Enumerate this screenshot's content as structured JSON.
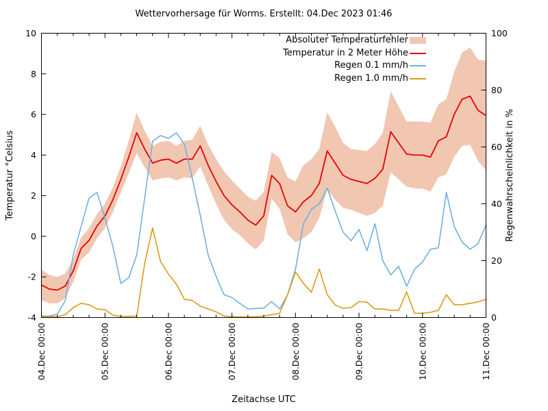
{
  "title": "Wettervorhersage für Worms. Erstellt: 04.Dec 2023 01:46",
  "chart_data": {
    "type": "line",
    "title": "Wettervorhersage für Worms. Erstellt: 04.Dec 2023 01:46",
    "x_label": "Zeitachse UTC",
    "x_start": "04.Dec 00:00",
    "x_end": "11.Dec 00:00",
    "sampling_hours": 3,
    "grid": false,
    "legend_position": "top-right-inside",
    "x_tick_labels": [
      "04.Dec 00:00",
      "05.Dec 00:00",
      "06.Dec 00:00",
      "07.Dec 00:00",
      "08.Dec 00:00",
      "09.Dec 00:00",
      "10.Dec 00:00",
      "11.Dec 00:00"
    ],
    "x_minor_ticks_hours": 6,
    "y_left": {
      "label": "Temperatur °Celsius",
      "range": [
        -4,
        10
      ],
      "ticks": [
        -4,
        -2,
        0,
        2,
        4,
        6,
        8,
        10
      ]
    },
    "y_right": {
      "label": "Regenwahrscheinlichkeit in %",
      "range": [
        0,
        100
      ],
      "ticks": [
        0,
        20,
        40,
        60,
        80,
        100
      ]
    },
    "series": [
      {
        "name": "Absoluter Temperaturfehler",
        "style": "band",
        "axis": "left",
        "color": "#f1c7b2",
        "half_width_values": [
          0.75,
          0.7,
          0.65,
          0.6,
          0.55,
          0.55,
          0.6,
          0.6,
          0.6,
          0.6,
          0.65,
          0.8,
          1.0,
          0.9,
          0.85,
          0.9,
          0.9,
          0.85,
          0.9,
          0.95,
          1.0,
          1.0,
          1.1,
          1.2,
          1.2,
          1.15,
          1.15,
          1.2,
          1.2,
          1.15,
          1.25,
          1.4,
          1.5,
          1.8,
          1.8,
          1.7,
          1.9,
          1.8,
          1.6,
          1.5,
          1.55,
          1.6,
          1.7,
          1.8,
          2.0,
          1.8,
          1.6,
          1.65,
          1.65,
          1.7,
          1.8,
          1.85,
          2.1,
          2.3,
          2.4,
          2.5,
          2.7
        ]
      },
      {
        "name": "Temperatur in 2 Meter Höhe",
        "style": "line",
        "axis": "left",
        "color": "#e60000",
        "values": [
          -2.4,
          -2.6,
          -2.65,
          -2.45,
          -1.7,
          -0.6,
          -0.2,
          0.5,
          1.0,
          1.8,
          2.8,
          3.9,
          5.1,
          4.3,
          3.6,
          3.75,
          3.8,
          3.6,
          3.8,
          3.8,
          4.45,
          3.5,
          2.7,
          2.0,
          1.55,
          1.2,
          0.8,
          0.55,
          1.0,
          3.0,
          2.6,
          1.5,
          1.2,
          1.7,
          2.0,
          2.6,
          4.2,
          3.6,
          3.0,
          2.8,
          2.7,
          2.6,
          2.85,
          3.3,
          5.15,
          4.6,
          4.05,
          4.0,
          4.0,
          3.9,
          4.7,
          4.9,
          6.0,
          6.75,
          6.9,
          6.2,
          5.95
        ]
      },
      {
        "name": "Regen 0.1 mm/h",
        "style": "line",
        "axis": "right",
        "color": "#6fb0de",
        "values": [
          0.5,
          0.5,
          1.2,
          6,
          22,
          32,
          42,
          44,
          35,
          25,
          12,
          14,
          22,
          42,
          62,
          64,
          63,
          65,
          61,
          49,
          36,
          22,
          14.5,
          8,
          7,
          5,
          3,
          3.2,
          3.3,
          5.6,
          3,
          8,
          17,
          33,
          38,
          40,
          45.5,
          37.5,
          30,
          27,
          31,
          23.5,
          33,
          20,
          15,
          18,
          11,
          17,
          19.5,
          24,
          24.5,
          44,
          32,
          26.5,
          24,
          26,
          32.5
        ]
      },
      {
        "name": "Regen 1.0 mm/h",
        "style": "line",
        "axis": "right",
        "color": "#db9a18",
        "values": [
          0.3,
          0.3,
          0.3,
          1,
          3.5,
          5,
          4.5,
          3,
          2.8,
          0.8,
          0.4,
          0.4,
          0.5,
          19,
          31.5,
          19.7,
          15.3,
          11.7,
          6.4,
          6,
          4,
          3,
          2,
          0.5,
          0.3,
          0.2,
          0.2,
          0.3,
          0.5,
          1,
          1.5,
          8,
          16,
          12,
          8.9,
          17,
          8,
          4.4,
          3.2,
          3.5,
          5.6,
          5.4,
          3,
          3,
          2.5,
          2.5,
          9,
          1.5,
          1.5,
          1.8,
          2.5,
          8,
          4.5,
          4.5,
          5,
          5.5,
          6.4
        ]
      }
    ]
  }
}
